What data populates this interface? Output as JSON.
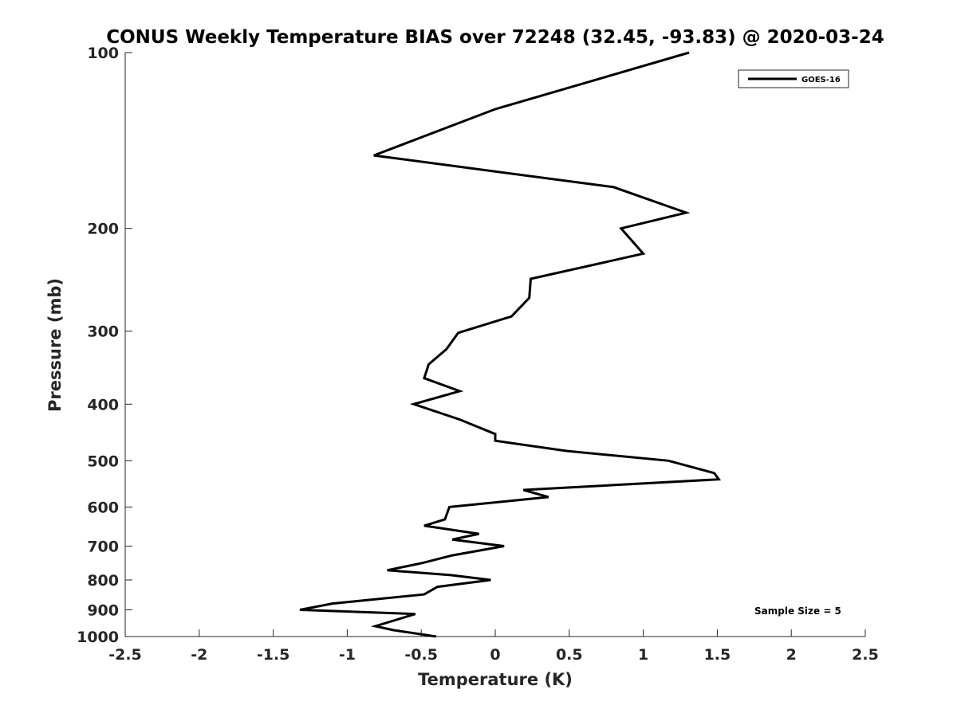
{
  "chart_data": {
    "type": "line",
    "title": "CONUS Weekly Temperature BIAS over 72248 (32.45, -93.83) @ 2020-03-24",
    "xlabel": "Temperature (K)",
    "ylabel": "Pressure (mb)",
    "xlim": [
      -2.5,
      2.5
    ],
    "ylim": [
      100,
      1000
    ],
    "y_scale": "log",
    "y_reversed": true,
    "grid": false,
    "legend_position": "top-right",
    "x_ticks": [
      "-2.5",
      "-2",
      "-1.5",
      "-1",
      "-0.5",
      "0",
      "0.5",
      "1",
      "1.5",
      "2",
      "2.5"
    ],
    "y_ticks": [
      "100",
      "200",
      "300",
      "400",
      "500",
      "600",
      "700",
      "800",
      "900",
      "1000"
    ],
    "annotation": "Sample Size = 5",
    "series": [
      {
        "name": "GOES-16",
        "color": "#000000",
        "points": [
          [
            1.31,
            100
          ],
          [
            0.0,
            125
          ],
          [
            -0.82,
            150
          ],
          [
            0.8,
            170
          ],
          [
            1.29,
            188
          ],
          [
            0.85,
            200
          ],
          [
            1.0,
            221
          ],
          [
            0.24,
            244
          ],
          [
            0.23,
            263
          ],
          [
            0.11,
            283
          ],
          [
            -0.25,
            302
          ],
          [
            -0.33,
            322
          ],
          [
            -0.45,
            342
          ],
          [
            -0.48,
            361
          ],
          [
            -0.24,
            380
          ],
          [
            -0.55,
            400
          ],
          [
            -0.24,
            425
          ],
          [
            0.0,
            450
          ],
          [
            0.0,
            462
          ],
          [
            0.48,
            481
          ],
          [
            1.17,
            500
          ],
          [
            1.48,
            525
          ],
          [
            1.51,
            538
          ],
          [
            0.19,
            561
          ],
          [
            0.36,
            577
          ],
          [
            -0.31,
            600
          ],
          [
            -0.34,
            630
          ],
          [
            -0.48,
            646
          ],
          [
            -0.11,
            667
          ],
          [
            -0.29,
            682
          ],
          [
            0.06,
            700
          ],
          [
            -0.29,
            726
          ],
          [
            -0.49,
            748
          ],
          [
            -0.73,
            770
          ],
          [
            -0.3,
            785
          ],
          [
            -0.03,
            800
          ],
          [
            -0.39,
            822
          ],
          [
            -0.48,
            847
          ],
          [
            -1.1,
            878
          ],
          [
            -1.32,
            900
          ],
          [
            -0.54,
            915
          ],
          [
            -0.81,
            960
          ],
          [
            -0.69,
            975
          ],
          [
            -0.4,
            1000
          ]
        ]
      }
    ]
  }
}
